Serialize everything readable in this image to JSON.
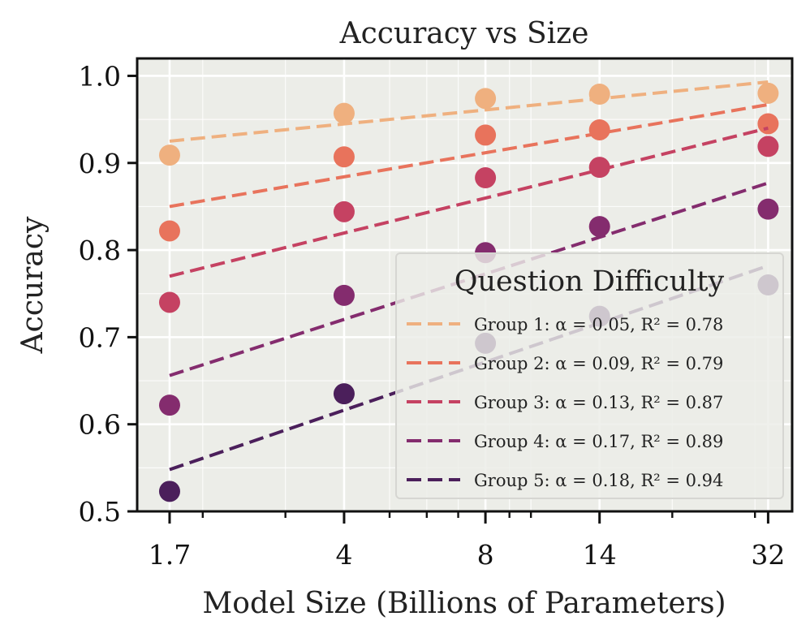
{
  "chart_data": {
    "type": "scatter",
    "title": "Accuracy vs Size",
    "xlabel": "Model Size (Billions of Parameters)",
    "ylabel": "Accuracy",
    "x_scale": "log",
    "x": [
      1.7,
      4,
      8,
      14,
      32
    ],
    "x_tick_labels": [
      "1.7",
      "4",
      "8",
      "14",
      "32"
    ],
    "xlim": [
      1.45,
      36
    ],
    "ylim": [
      0.5,
      1.02
    ],
    "y_ticks": [
      0.5,
      0.6,
      0.7,
      0.8,
      0.9,
      1.0
    ],
    "y_tick_labels": [
      "0.5",
      "0.6",
      "0.7",
      "0.8",
      "0.9",
      "1.0"
    ],
    "grid": true,
    "background": "#ecede8",
    "legend": {
      "title": "Question Difficulty",
      "placement": "lower-right"
    },
    "series": [
      {
        "name": "Group 1: α = 0.05, R² = 0.78",
        "color": "#efb07f",
        "values": [
          0.909,
          0.957,
          0.974,
          0.979,
          0.98
        ],
        "fit": [
          0.925,
          0.993
        ]
      },
      {
        "name": "Group 2: α = 0.09, R² = 0.79",
        "color": "#e8735c",
        "values": [
          0.822,
          0.907,
          0.932,
          0.938,
          0.945
        ],
        "fit": [
          0.85,
          0.967
        ]
      },
      {
        "name": "Group 3: α = 0.13, R² = 0.87",
        "color": "#c54262",
        "values": [
          0.74,
          0.844,
          0.883,
          0.895,
          0.919
        ],
        "fit": [
          0.77,
          0.94
        ]
      },
      {
        "name": "Group 4: α = 0.17, R² = 0.89",
        "color": "#842c6e",
        "values": [
          0.622,
          0.748,
          0.797,
          0.827,
          0.847
        ],
        "fit": [
          0.656,
          0.877
        ]
      },
      {
        "name": "Group 5: α = 0.18, R² = 0.94",
        "color": "#4b1f5b",
        "values": [
          0.523,
          0.635,
          0.693,
          0.724,
          0.76
        ],
        "fit": [
          0.548,
          0.782
        ]
      }
    ]
  }
}
